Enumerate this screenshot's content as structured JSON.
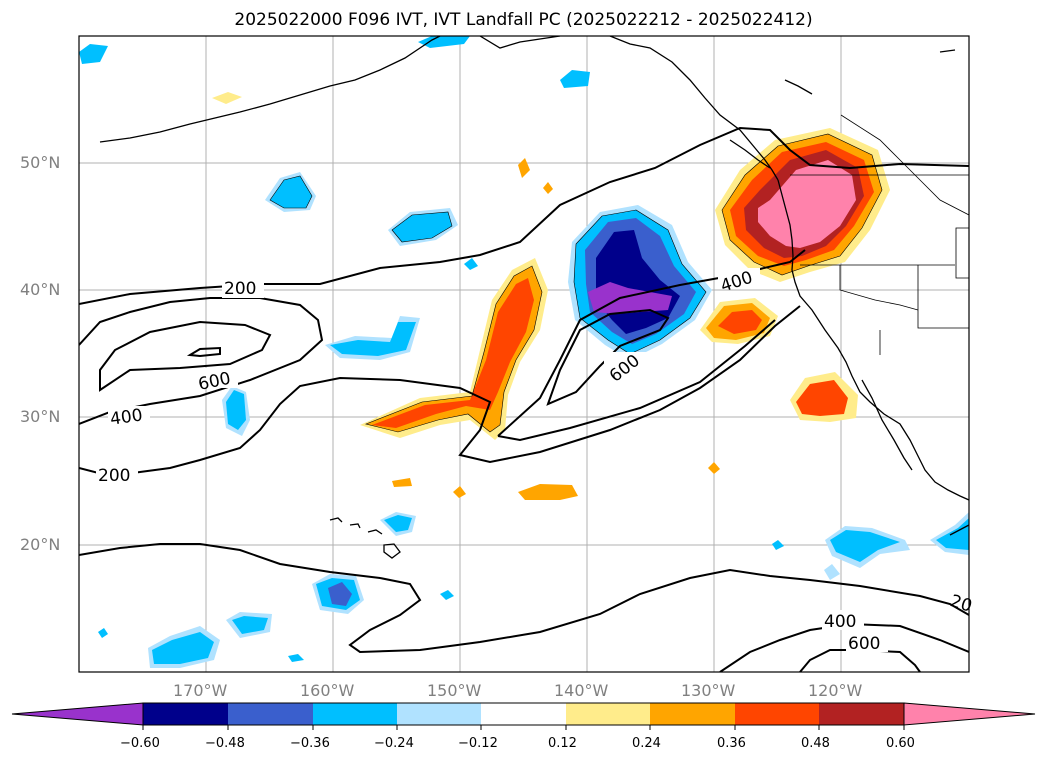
{
  "title": "2025022000 F096 IVT, IVT Landfall PC (2025022212 - 2025022412)",
  "lat_labels": [
    "50°N",
    "40°N",
    "30°N",
    "20°N"
  ],
  "lon_labels": [
    "170°W",
    "160°W",
    "150°W",
    "140°W",
    "130°W",
    "120°W"
  ],
  "contour_labels": [
    "200",
    "600",
    "400",
    "200",
    "400",
    "600",
    "400",
    "600",
    "20"
  ],
  "colorbar": {
    "colors": [
      "#9932cc",
      "#00008b",
      "#3a5fcd",
      "#00bfff",
      "#b0e2ff",
      "#ffffff",
      "#ffec8b",
      "#ffa500",
      "#ff4500",
      "#b22222",
      "#ff82ab"
    ],
    "tick_labels": [
      "−0.60",
      "−0.48",
      "−0.36",
      "−0.24",
      "−0.12",
      "0.12",
      "0.24",
      "0.36",
      "0.48",
      "0.60"
    ],
    "extend": "both"
  },
  "colors": {
    "grid": "#b0b0b0",
    "contour": "#000000",
    "coast": "#000000"
  }
}
